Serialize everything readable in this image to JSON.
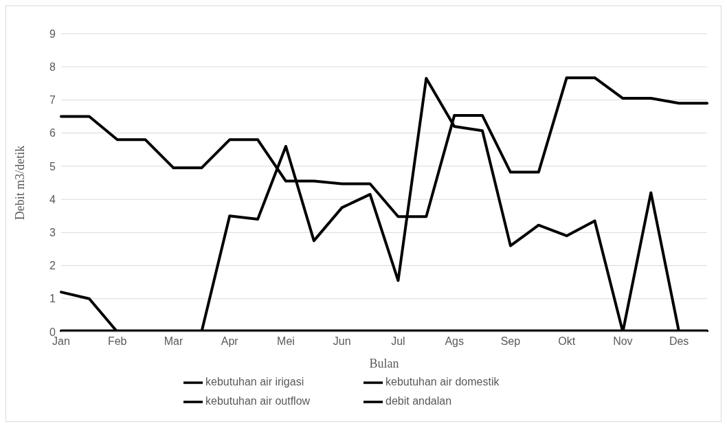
{
  "chart_data": {
    "type": "line",
    "xlabel": "Bulan",
    "ylabel": "Debit m3/detik",
    "categories": [
      "Jan",
      null,
      "Feb",
      null,
      "Mar",
      null,
      "Apr",
      null,
      "Mei",
      null,
      "Jun",
      null,
      "Jul",
      null,
      "Ags",
      null,
      "Sep",
      null,
      "Okt",
      null,
      "Nov",
      null,
      "Des",
      null
    ],
    "series": [
      {
        "name": "kebutuhan air irigasi",
        "color": "#000000",
        "values": [
          1.2,
          1.0,
          0,
          0,
          0,
          0,
          3.5,
          3.4,
          5.6,
          2.75,
          3.75,
          4.15,
          1.55,
          7.65,
          6.2,
          6.07,
          2.6,
          3.22,
          2.9,
          3.35,
          0,
          4.2,
          0,
          0
        ]
      },
      {
        "name": "kebutuhan air domestik",
        "color": "#000000",
        "values": [
          0.03,
          0.03,
          0.03,
          0.03,
          0.03,
          0.03,
          0.03,
          0.03,
          0.03,
          0.03,
          0.03,
          0.03,
          0.03,
          0.03,
          0.03,
          0.03,
          0.03,
          0.03,
          0.03,
          0.03,
          0.03,
          0.03,
          0.03,
          0.03
        ]
      },
      {
        "name": "kebutuhan air outflow",
        "color": "#000000",
        "values": [
          null,
          null,
          null,
          null,
          null,
          null,
          null,
          null,
          null,
          null,
          null,
          null,
          null,
          null,
          null,
          null,
          null,
          null,
          null,
          null,
          null,
          null,
          null,
          null
        ]
      },
      {
        "name": "debit andalan",
        "color": "#000000",
        "values": [
          6.5,
          6.5,
          5.8,
          5.8,
          4.95,
          4.95,
          5.8,
          5.8,
          4.55,
          4.55,
          4.47,
          4.47,
          3.48,
          3.48,
          6.53,
          6.53,
          4.82,
          4.82,
          7.67,
          7.67,
          7.05,
          7.05,
          6.9,
          6.9
        ]
      }
    ],
    "ylim": [
      0,
      9
    ],
    "yticks": [
      0,
      1,
      2,
      3,
      4,
      5,
      6,
      7,
      8,
      9
    ],
    "grid": "y",
    "legend": "bottom"
  }
}
